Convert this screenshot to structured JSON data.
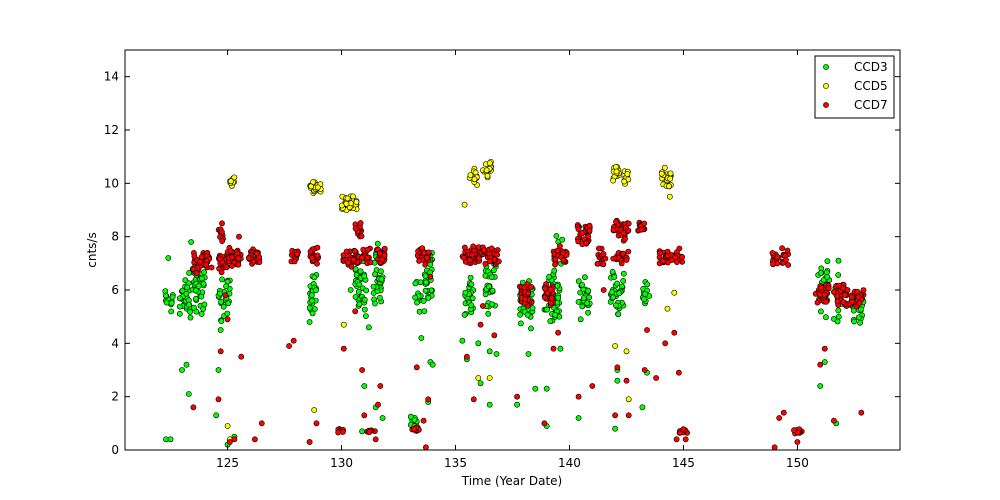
{
  "chart_data": {
    "type": "scatter",
    "title": "",
    "xlabel": "Time (Year Date)",
    "ylabel": "cnts/s",
    "xlim": [
      120.5,
      154.5
    ],
    "ylim": [
      0,
      15
    ],
    "xticks": [
      125,
      130,
      135,
      140,
      145,
      150
    ],
    "yticks": [
      0,
      2,
      4,
      6,
      8,
      10,
      12,
      14
    ],
    "grid": false,
    "legend_position": "top-right",
    "series": [
      {
        "name": "CCD3",
        "color": "#00ff00",
        "clusters": [
          {
            "x0": 122.2,
            "x1": 122.6,
            "ymin": 5.0,
            "ymax": 6.2,
            "n": 14
          },
          {
            "x0": 122.9,
            "x1": 123.4,
            "ymin": 4.4,
            "ymax": 6.9,
            "n": 30
          },
          {
            "x0": 123.4,
            "x1": 124.0,
            "ymin": 4.9,
            "ymax": 7.4,
            "n": 40
          },
          {
            "x0": 124.6,
            "x1": 125.1,
            "ymin": 4.6,
            "ymax": 6.8,
            "n": 28
          },
          {
            "x0": 128.6,
            "x1": 128.9,
            "ymin": 5.0,
            "ymax": 7.0,
            "n": 22
          },
          {
            "x0": 130.6,
            "x1": 131.1,
            "ymin": 4.8,
            "ymax": 7.5,
            "n": 34
          },
          {
            "x0": 131.4,
            "x1": 131.8,
            "ymin": 5.0,
            "ymax": 7.8,
            "n": 34
          },
          {
            "x0": 133.2,
            "x1": 133.5,
            "ymin": 4.9,
            "ymax": 6.6,
            "n": 12
          },
          {
            "x0": 133.6,
            "x1": 134.0,
            "ymin": 4.9,
            "ymax": 7.8,
            "n": 26
          },
          {
            "x0": 135.4,
            "x1": 135.8,
            "ymin": 5.0,
            "ymax": 6.8,
            "n": 26
          },
          {
            "x0": 136.3,
            "x1": 136.8,
            "ymin": 5.0,
            "ymax": 7.2,
            "n": 28
          },
          {
            "x0": 137.8,
            "x1": 138.4,
            "ymin": 4.5,
            "ymax": 6.5,
            "n": 40
          },
          {
            "x0": 138.9,
            "x1": 139.6,
            "ymin": 4.6,
            "ymax": 6.8,
            "n": 44
          },
          {
            "x0": 139.3,
            "x1": 139.7,
            "ymin": 6.6,
            "ymax": 8.6,
            "n": 8
          },
          {
            "x0": 140.4,
            "x1": 140.9,
            "ymin": 4.8,
            "ymax": 6.8,
            "n": 26
          },
          {
            "x0": 141.8,
            "x1": 142.4,
            "ymin": 4.9,
            "ymax": 6.9,
            "n": 36
          },
          {
            "x0": 143.2,
            "x1": 143.5,
            "ymin": 5.0,
            "ymax": 6.6,
            "n": 12
          },
          {
            "x0": 150.9,
            "x1": 151.4,
            "ymin": 4.8,
            "ymax": 7.2,
            "n": 26
          },
          {
            "x0": 151.6,
            "x1": 152.1,
            "ymin": 4.7,
            "ymax": 6.9,
            "n": 22
          },
          {
            "x0": 152.4,
            "x1": 152.9,
            "ymin": 4.6,
            "ymax": 6.2,
            "n": 22
          },
          {
            "x0": 133.0,
            "x1": 133.3,
            "ymin": 0.8,
            "ymax": 1.3,
            "n": 8
          }
        ],
        "points": [
          [
            122.3,
            0.4
          ],
          [
            122.5,
            0.4
          ],
          [
            122.4,
            7.2
          ],
          [
            123.0,
            3.0
          ],
          [
            123.2,
            3.2
          ],
          [
            123.3,
            2.1
          ],
          [
            123.4,
            7.8
          ],
          [
            124.6,
            3.0
          ],
          [
            124.5,
            1.3
          ],
          [
            124.7,
            4.5
          ],
          [
            125.0,
            0.2
          ],
          [
            125.3,
            0.5
          ],
          [
            128.6,
            0.3
          ],
          [
            128.6,
            4.8
          ],
          [
            128.7,
            5.6
          ],
          [
            130.0,
            0.7
          ],
          [
            130.4,
            6.0
          ],
          [
            130.9,
            0.7
          ],
          [
            131.0,
            2.4
          ],
          [
            131.5,
            1.6
          ],
          [
            131.2,
            4.6
          ],
          [
            131.8,
            1.2
          ],
          [
            133.5,
            4.2
          ],
          [
            133.9,
            3.3
          ],
          [
            134.0,
            3.2
          ],
          [
            133.8,
            1.8
          ],
          [
            135.3,
            4.1
          ],
          [
            135.5,
            3.4
          ],
          [
            136.0,
            4.0
          ],
          [
            136.1,
            2.5
          ],
          [
            136.5,
            1.7
          ],
          [
            136.5,
            3.7
          ],
          [
            136.8,
            3.6
          ],
          [
            137.7,
            1.7
          ],
          [
            138.2,
            3.6
          ],
          [
            138.5,
            2.3
          ],
          [
            139.0,
            2.3
          ],
          [
            139.0,
            0.9
          ],
          [
            139.6,
            3.8
          ],
          [
            140.4,
            1.2
          ],
          [
            142.0,
            0.8
          ],
          [
            142.1,
            2.6
          ],
          [
            142.1,
            3.0
          ],
          [
            143.2,
            1.6
          ],
          [
            143.4,
            2.9
          ],
          [
            151.0,
            2.4
          ],
          [
            151.2,
            3.3
          ],
          [
            151.7,
            1.0
          ],
          [
            151.8,
            7.1
          ]
        ]
      },
      {
        "name": "CCD5",
        "color": "#ffff00",
        "clusters": [
          {
            "x0": 125.1,
            "x1": 125.3,
            "ymin": 9.8,
            "ymax": 10.4,
            "n": 8
          },
          {
            "x0": 128.6,
            "x1": 129.1,
            "ymin": 9.6,
            "ymax": 10.1,
            "n": 24
          },
          {
            "x0": 130.0,
            "x1": 130.7,
            "ymin": 8.9,
            "ymax": 9.6,
            "n": 30
          },
          {
            "x0": 135.6,
            "x1": 136.0,
            "ymin": 9.9,
            "ymax": 10.6,
            "n": 16
          },
          {
            "x0": 136.2,
            "x1": 136.6,
            "ymin": 10.2,
            "ymax": 10.9,
            "n": 16
          },
          {
            "x0": 141.9,
            "x1": 142.2,
            "ymin": 10.0,
            "ymax": 10.8,
            "n": 14
          },
          {
            "x0": 142.4,
            "x1": 142.6,
            "ymin": 9.9,
            "ymax": 10.5,
            "n": 10
          },
          {
            "x0": 144.0,
            "x1": 144.5,
            "ymin": 9.8,
            "ymax": 10.7,
            "n": 24
          }
        ],
        "points": [
          [
            125.0,
            0.9
          ],
          [
            125.1,
            0.4
          ],
          [
            128.8,
            1.5
          ],
          [
            130.1,
            4.7
          ],
          [
            135.4,
            9.2
          ],
          [
            136.0,
            2.7
          ],
          [
            136.5,
            2.7
          ],
          [
            142.0,
            3.9
          ],
          [
            142.5,
            3.7
          ],
          [
            142.6,
            1.9
          ],
          [
            144.3,
            5.3
          ],
          [
            144.4,
            9.5
          ],
          [
            144.6,
            5.9
          ]
        ]
      },
      {
        "name": "CCD7",
        "color": "#ff0000",
        "clusters": [
          {
            "x0": 123.5,
            "x1": 124.3,
            "ymin": 6.6,
            "ymax": 7.5,
            "n": 40
          },
          {
            "x0": 124.6,
            "x1": 125.0,
            "ymin": 6.5,
            "ymax": 7.4,
            "n": 24
          },
          {
            "x0": 124.6,
            "x1": 124.8,
            "ymin": 7.8,
            "ymax": 8.7,
            "n": 10
          },
          {
            "x0": 125.0,
            "x1": 125.6,
            "ymin": 6.8,
            "ymax": 7.6,
            "n": 30
          },
          {
            "x0": 125.9,
            "x1": 126.4,
            "ymin": 6.8,
            "ymax": 7.6,
            "n": 24
          },
          {
            "x0": 127.7,
            "x1": 128.1,
            "ymin": 6.9,
            "ymax": 7.6,
            "n": 12
          },
          {
            "x0": 128.6,
            "x1": 129.0,
            "ymin": 6.9,
            "ymax": 7.7,
            "n": 18
          },
          {
            "x0": 130.0,
            "x1": 130.8,
            "ymin": 6.8,
            "ymax": 7.5,
            "n": 36
          },
          {
            "x0": 130.6,
            "x1": 130.9,
            "ymin": 7.8,
            "ymax": 8.6,
            "n": 12
          },
          {
            "x0": 130.9,
            "x1": 131.3,
            "ymin": 6.9,
            "ymax": 7.6,
            "n": 18
          },
          {
            "x0": 131.5,
            "x1": 131.9,
            "ymin": 6.9,
            "ymax": 7.7,
            "n": 20
          },
          {
            "x0": 129.8,
            "x1": 130.2,
            "ymin": 0.6,
            "ymax": 0.8,
            "n": 8
          },
          {
            "x0": 131.0,
            "x1": 131.5,
            "ymin": 0.6,
            "ymax": 0.8,
            "n": 8
          },
          {
            "x0": 133.1,
            "x1": 133.4,
            "ymin": 0.7,
            "ymax": 0.9,
            "n": 8
          },
          {
            "x0": 133.3,
            "x1": 133.9,
            "ymin": 6.9,
            "ymax": 7.7,
            "n": 24
          },
          {
            "x0": 135.3,
            "x1": 136.0,
            "ymin": 6.9,
            "ymax": 7.7,
            "n": 32
          },
          {
            "x0": 136.0,
            "x1": 136.9,
            "ymin": 6.9,
            "ymax": 7.7,
            "n": 40
          },
          {
            "x0": 137.8,
            "x1": 138.4,
            "ymin": 5.3,
            "ymax": 6.3,
            "n": 32
          },
          {
            "x0": 138.9,
            "x1": 139.3,
            "ymin": 5.3,
            "ymax": 6.3,
            "n": 24
          },
          {
            "x0": 139.3,
            "x1": 139.9,
            "ymin": 6.9,
            "ymax": 7.7,
            "n": 24
          },
          {
            "x0": 140.3,
            "x1": 140.9,
            "ymin": 7.6,
            "ymax": 8.6,
            "n": 30
          },
          {
            "x0": 141.2,
            "x1": 141.6,
            "ymin": 6.9,
            "ymax": 7.6,
            "n": 14
          },
          {
            "x0": 141.9,
            "x1": 142.6,
            "ymin": 7.8,
            "ymax": 8.7,
            "n": 34
          },
          {
            "x0": 141.9,
            "x1": 142.6,
            "ymin": 6.9,
            "ymax": 7.5,
            "n": 20
          },
          {
            "x0": 143.0,
            "x1": 143.3,
            "ymin": 8.1,
            "ymax": 8.7,
            "n": 14
          },
          {
            "x0": 143.9,
            "x1": 145.0,
            "ymin": 6.9,
            "ymax": 7.6,
            "n": 40
          },
          {
            "x0": 144.8,
            "x1": 145.2,
            "ymin": 0.6,
            "ymax": 0.8,
            "n": 10
          },
          {
            "x0": 148.9,
            "x1": 149.6,
            "ymin": 6.9,
            "ymax": 7.6,
            "n": 24
          },
          {
            "x0": 149.8,
            "x1": 150.2,
            "ymin": 0.6,
            "ymax": 0.8,
            "n": 8
          },
          {
            "x0": 150.8,
            "x1": 151.4,
            "ymin": 5.4,
            "ymax": 6.4,
            "n": 26
          },
          {
            "x0": 151.6,
            "x1": 152.2,
            "ymin": 5.3,
            "ymax": 6.3,
            "n": 26
          },
          {
            "x0": 152.3,
            "x1": 152.9,
            "ymin": 5.3,
            "ymax": 6.1,
            "n": 26
          }
        ],
        "points": [
          [
            123.5,
            1.6
          ],
          [
            124.7,
            3.7
          ],
          [
            124.6,
            1.9
          ],
          [
            125.1,
            0.3
          ],
          [
            125.3,
            0.4
          ],
          [
            125.0,
            4.9
          ],
          [
            124.9,
            5.8
          ],
          [
            125.5,
            8.0
          ],
          [
            125.6,
            3.5
          ],
          [
            126.2,
            0.4
          ],
          [
            126.5,
            1.0
          ],
          [
            127.7,
            3.9
          ],
          [
            127.9,
            4.1
          ],
          [
            128.6,
            0.3
          ],
          [
            128.9,
            1.0
          ],
          [
            130.1,
            3.8
          ],
          [
            130.6,
            5.2
          ],
          [
            130.9,
            3.0
          ],
          [
            131.0,
            1.3
          ],
          [
            131.5,
            0.4
          ],
          [
            131.7,
            2.4
          ],
          [
            131.6,
            1.7
          ],
          [
            133.3,
            3.1
          ],
          [
            133.6,
            1.1
          ],
          [
            133.7,
            0.1
          ],
          [
            133.8,
            1.9
          ],
          [
            133.9,
            6.5
          ],
          [
            135.5,
            3.5
          ],
          [
            135.8,
            1.9
          ],
          [
            136.1,
            4.7
          ],
          [
            136.2,
            5.4
          ],
          [
            136.7,
            4.3
          ],
          [
            137.7,
            2.0
          ],
          [
            138.9,
            1.0
          ],
          [
            139.3,
            3.8
          ],
          [
            139.5,
            4.4
          ],
          [
            140.4,
            2.0
          ],
          [
            141.0,
            2.4
          ],
          [
            141.5,
            6.0
          ],
          [
            142.0,
            1.3
          ],
          [
            142.1,
            3.1
          ],
          [
            142.5,
            2.6
          ],
          [
            142.6,
            1.3
          ],
          [
            143.3,
            3.0
          ],
          [
            143.4,
            4.5
          ],
          [
            143.8,
            2.7
          ],
          [
            144.2,
            4.0
          ],
          [
            144.6,
            4.4
          ],
          [
            144.8,
            2.9
          ],
          [
            144.7,
            0.4
          ],
          [
            145.1,
            0.4
          ],
          [
            149.0,
            0.1
          ],
          [
            149.2,
            1.2
          ],
          [
            149.4,
            1.4
          ],
          [
            150.0,
            0.3
          ],
          [
            151.0,
            3.2
          ],
          [
            151.2,
            3.8
          ],
          [
            151.6,
            1.1
          ],
          [
            152.8,
            1.4
          ]
        ]
      }
    ]
  }
}
